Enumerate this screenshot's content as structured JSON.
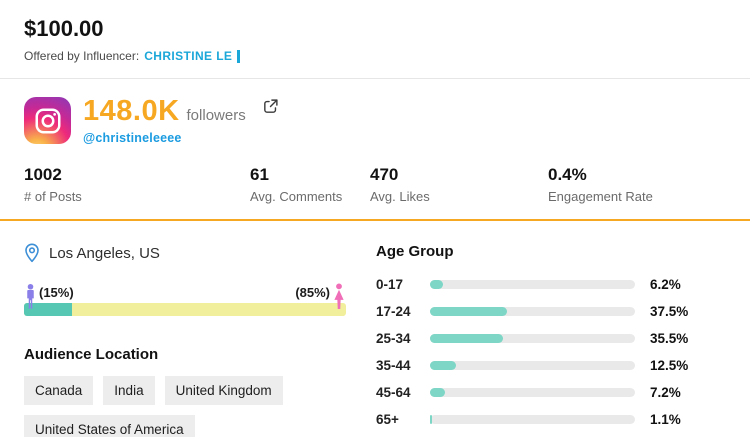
{
  "header": {
    "price": "$100.00",
    "offered_by_label": "Offered by Influencer:",
    "influencer_name": "CHRISTINE LE"
  },
  "profile": {
    "followers_count": "148.0K",
    "followers_label": "followers",
    "handle": "@christineleeee"
  },
  "stats": [
    {
      "value": "1002",
      "label": "# of Posts"
    },
    {
      "value": "61",
      "label": "Avg. Comments"
    },
    {
      "value": "470",
      "label": "Avg. Likes"
    },
    {
      "value": "0.4%",
      "label": "Engagement Rate"
    }
  ],
  "audience": {
    "location_label": "Los Angeles, US",
    "gender": {
      "male_label": "(15%)",
      "female_label": "(85%)",
      "male_value": 15,
      "female_value": 85
    },
    "location_title": "Audience Location",
    "location_tags": [
      "Canada",
      "India",
      "United Kingdom",
      "United States of America"
    ]
  },
  "age_group": {
    "title": "Age Group",
    "rows": [
      {
        "label": "0-17",
        "pct_label": "6.2%",
        "value": 6.2
      },
      {
        "label": "17-24",
        "pct_label": "37.5%",
        "value": 37.5
      },
      {
        "label": "25-34",
        "pct_label": "35.5%",
        "value": 35.5
      },
      {
        "label": "35-44",
        "pct_label": "12.5%",
        "value": 12.5
      },
      {
        "label": "45-64",
        "pct_label": "7.2%",
        "value": 7.2
      },
      {
        "label": "65+",
        "pct_label": "1.1%",
        "value": 1.1
      }
    ]
  },
  "colors": {
    "accent_orange": "#F7A823",
    "link_cyan": "#1CA7D9",
    "handle_blue": "#1B9BE0",
    "gender_teal": "#56C7B3",
    "gender_yellow": "#F1EF9B",
    "age_bar_teal": "#7ED6C6",
    "track_gray": "#E9E9E9",
    "male_icon_purple": "#8A7FE8",
    "female_icon_pink": "#F06EB7"
  },
  "chart_data": [
    {
      "type": "bar",
      "title": "Age Group",
      "orientation": "horizontal",
      "categories": [
        "0-17",
        "17-24",
        "25-34",
        "35-44",
        "45-64",
        "65+"
      ],
      "values": [
        6.2,
        37.5,
        35.5,
        12.5,
        7.2,
        1.1
      ],
      "unit": "%",
      "xlabel": "",
      "ylabel": "",
      "legend": false
    },
    {
      "type": "bar",
      "title": "Audience Gender Split",
      "orientation": "horizontal-stacked",
      "categories": [
        "Male",
        "Female"
      ],
      "values": [
        15,
        85
      ],
      "unit": "%",
      "legend": false
    }
  ]
}
